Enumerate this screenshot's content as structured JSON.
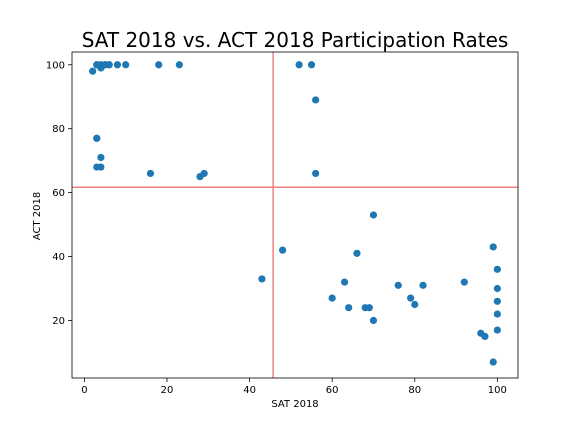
{
  "chart_data": {
    "type": "scatter",
    "title": "SAT 2018 vs. ACT 2018 Participation Rates",
    "xlabel": "SAT 2018",
    "ylabel": "ACT 2018",
    "xlim": [
      -3,
      105
    ],
    "ylim": [
      2,
      104
    ],
    "xticks": [
      0,
      20,
      40,
      60,
      80,
      100
    ],
    "yticks": [
      20,
      40,
      60,
      80,
      100
    ],
    "grid": false,
    "legend": "none",
    "reference_lines": {
      "vertical_x": 45.7,
      "horizontal_y": 61.7,
      "color": "#f08080"
    },
    "point_color": "#1f77b4",
    "series": [
      {
        "x": [
          2,
          3,
          3,
          3,
          4,
          4,
          4,
          5,
          5,
          6,
          6,
          8,
          10,
          18,
          23,
          52,
          55,
          3,
          3,
          4,
          16,
          28,
          29,
          56,
          56,
          70,
          99,
          43,
          48,
          66,
          63,
          60,
          64,
          68,
          69,
          70,
          76,
          79,
          80,
          82,
          92,
          100,
          100,
          100,
          100,
          100,
          96,
          97,
          99
        ],
        "y": [
          98,
          100,
          100,
          77,
          68,
          100,
          99,
          100,
          100,
          100,
          100,
          100,
          100,
          100,
          100,
          100,
          100,
          77,
          68,
          71,
          66,
          65,
          66,
          89,
          66,
          53,
          43,
          33,
          42,
          41,
          32,
          27,
          24,
          24,
          24,
          20,
          31,
          27,
          25,
          31,
          32,
          36,
          30,
          26,
          22,
          17,
          16,
          15,
          7
        ]
      }
    ]
  }
}
